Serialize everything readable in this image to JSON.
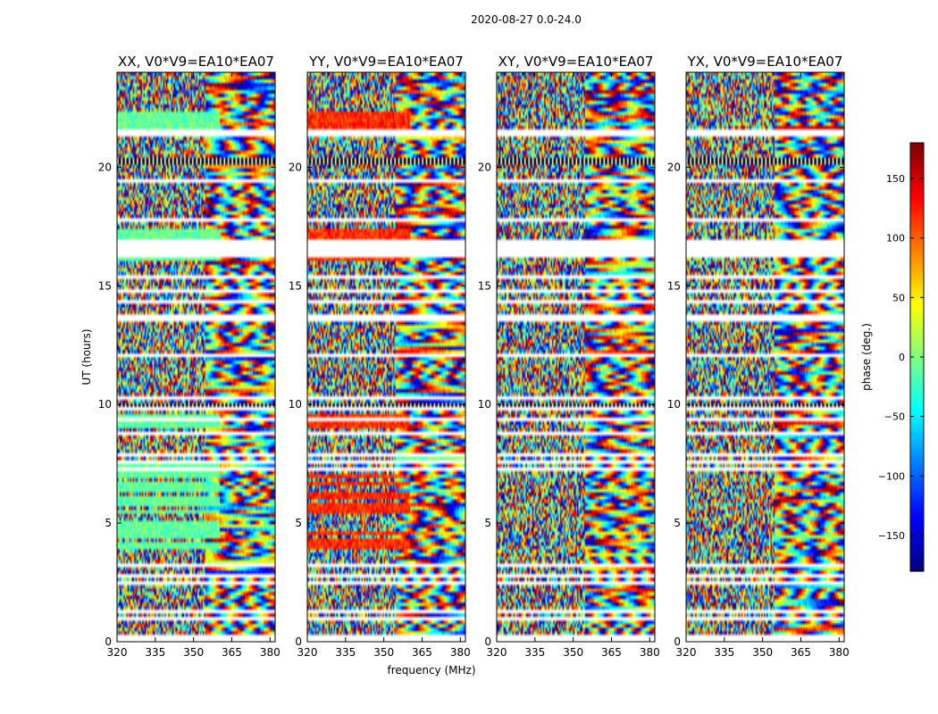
{
  "figure": {
    "suptitle": "2020-08-27 0.0-24.0"
  },
  "chart_data": {
    "type": "heatmap",
    "subtype": "dynamic spectrum (phase vs frequency and time)",
    "xlabel": "frequency (MHz)",
    "ylabel": "UT (hours)",
    "xlim": [
      320,
      382
    ],
    "ylim": [
      0,
      24
    ],
    "xticks": [
      320,
      335,
      350,
      365,
      380
    ],
    "yticks": [
      0,
      5,
      10,
      15,
      20
    ],
    "colorbar": {
      "label": "phase (deg.)",
      "colormap": "jet",
      "range": [
        -180,
        180
      ],
      "ticks": [
        -150,
        -100,
        -50,
        0,
        50,
        100,
        150
      ],
      "tick_labels": [
        "−150",
        "−100",
        "−50",
        "0",
        "50",
        "100",
        "150"
      ]
    },
    "flagged_gaps_hours": [
      [
        16.2,
        17.0
      ],
      [
        9.3,
        9.5
      ],
      [
        10.2,
        10.4
      ],
      [
        17.7,
        17.8
      ],
      [
        19.3,
        19.5
      ],
      [
        21.3,
        21.6
      ]
    ],
    "panels": [
      {
        "title": "XX, V0*V9=EA10*EA07",
        "pol": "XX",
        "coherent_phase_deg": -10
      },
      {
        "title": "YY, V0*V9=EA10*EA07",
        "pol": "YY",
        "coherent_phase_deg": 120
      },
      {
        "title": "XY, V0*V9=EA10*EA07",
        "pol": "XY",
        "coherent_phase_deg": null
      },
      {
        "title": "YX, V0*V9=EA10*EA07",
        "pol": "YX",
        "coherent_phase_deg": null
      }
    ]
  }
}
